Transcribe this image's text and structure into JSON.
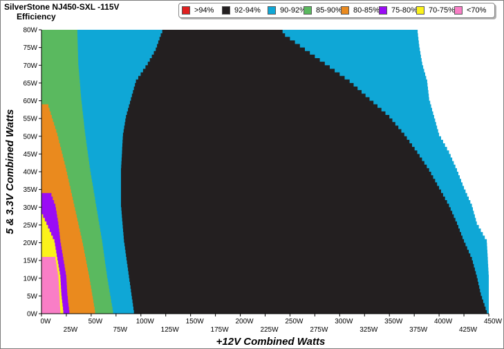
{
  "chart_data": {
    "type": "heatmap",
    "title": "SilverStone NJ450-SXL -115V",
    "subtitle": "Efficiency",
    "xlabel": "+12V Combined Watts",
    "ylabel": "5 & 3.3V Combined Watts",
    "xlim": [
      0,
      450
    ],
    "ylim": [
      0,
      80
    ],
    "x_ticks": [
      "0W",
      "25W",
      "50W",
      "75W",
      "100W",
      "125W",
      "150W",
      "175W",
      "200W",
      "225W",
      "250W",
      "275W",
      "300W",
      "325W",
      "350W",
      "375W",
      "400W",
      "425W",
      "450W"
    ],
    "y_ticks": [
      "0W",
      "5W",
      "10W",
      "15W",
      "20W",
      "25W",
      "30W",
      "35W",
      "40W",
      "45W",
      "50W",
      "55W",
      "60W",
      "65W",
      "70W",
      "75W",
      "80W"
    ],
    "legend": [
      {
        "label": ">94%",
        "color": "#e02020"
      },
      {
        "label": "92-94%",
        "color": "#231f20"
      },
      {
        "label": "90-92%",
        "color": "#0fa7d6"
      },
      {
        "label": "85-90%",
        "color": "#5ab95f"
      },
      {
        "label": "80-85%",
        "color": "#ea8a1e"
      },
      {
        "label": "75-80%",
        "color": "#9a0cf5"
      },
      {
        "label": "70-75%",
        "color": "#fbf21a"
      },
      {
        "label": "<70%",
        "color": "#f97ec6"
      }
    ],
    "region_boundaries_note_free": true,
    "regions": [
      {
        "band": "<70%",
        "color": "#f97ec6",
        "right_edge": [
          [
            0,
            19
          ],
          [
            5,
            18
          ],
          [
            10,
            17
          ],
          [
            15,
            14
          ],
          [
            16,
            0
          ],
          [
            80,
            0
          ]
        ]
      },
      {
        "band": "70-75%",
        "color": "#fbf21a",
        "right_edge": [
          [
            0,
            22
          ],
          [
            5,
            20
          ],
          [
            10,
            19
          ],
          [
            15,
            16
          ],
          [
            20,
            13
          ],
          [
            25,
            5
          ],
          [
            28,
            0
          ],
          [
            80,
            0
          ]
        ]
      },
      {
        "band": "75-80%",
        "color": "#9a0cf5",
        "right_edge": [
          [
            0,
            28
          ],
          [
            5,
            26
          ],
          [
            10,
            25
          ],
          [
            15,
            22
          ],
          [
            20,
            19
          ],
          [
            25,
            17
          ],
          [
            30,
            14
          ],
          [
            33,
            10
          ],
          [
            34,
            0
          ],
          [
            80,
            0
          ]
        ]
      },
      {
        "band": "80-85%",
        "color": "#ea8a1e",
        "right_edge": [
          [
            0,
            54
          ],
          [
            10,
            48
          ],
          [
            20,
            41
          ],
          [
            30,
            33
          ],
          [
            40,
            25
          ],
          [
            50,
            16
          ],
          [
            58,
            7
          ],
          [
            59,
            0
          ],
          [
            80,
            0
          ]
        ]
      },
      {
        "band": "85-90%",
        "color": "#5ab95f",
        "right_edge": [
          [
            0,
            72
          ],
          [
            10,
            66
          ],
          [
            20,
            61
          ],
          [
            30,
            55
          ],
          [
            40,
            49
          ],
          [
            50,
            44
          ],
          [
            60,
            40
          ],
          [
            70,
            37
          ],
          [
            80,
            36
          ]
        ]
      },
      {
        "band": "90-92%",
        "color": "#0fa7d6",
        "right_edge": [
          [
            0,
            93
          ],
          [
            10,
            88
          ],
          [
            20,
            83
          ],
          [
            30,
            80
          ],
          [
            40,
            80
          ],
          [
            50,
            82
          ],
          [
            55,
            85
          ],
          [
            60,
            90
          ],
          [
            65,
            95
          ],
          [
            70,
            107
          ],
          [
            74,
            115
          ],
          [
            78,
            120
          ],
          [
            80,
            123
          ]
        ]
      },
      {
        "band": "92-94%",
        "color": "#231f20",
        "right_edge": [
          [
            0,
            448
          ],
          [
            5,
            442
          ],
          [
            10,
            438
          ],
          [
            15,
            433
          ],
          [
            20,
            425
          ],
          [
            25,
            418
          ],
          [
            30,
            410
          ],
          [
            35,
            400
          ],
          [
            40,
            390
          ],
          [
            45,
            378
          ],
          [
            50,
            365
          ],
          [
            55,
            350
          ],
          [
            60,
            330
          ],
          [
            65,
            310
          ],
          [
            70,
            285
          ],
          [
            75,
            260
          ],
          [
            78,
            245
          ],
          [
            80,
            240
          ]
        ]
      },
      {
        "band": "90-92%",
        "color": "#0fa7d6",
        "right_edge": [
          [
            0,
            450
          ],
          [
            10,
            450
          ],
          [
            20,
            448
          ],
          [
            25,
            438
          ],
          [
            30,
            433
          ],
          [
            35,
            425
          ],
          [
            40,
            418
          ],
          [
            45,
            410
          ],
          [
            50,
            400
          ],
          [
            55,
            395
          ],
          [
            60,
            390
          ],
          [
            65,
            388
          ],
          [
            70,
            383
          ],
          [
            75,
            380
          ],
          [
            80,
            378
          ]
        ]
      }
    ]
  }
}
